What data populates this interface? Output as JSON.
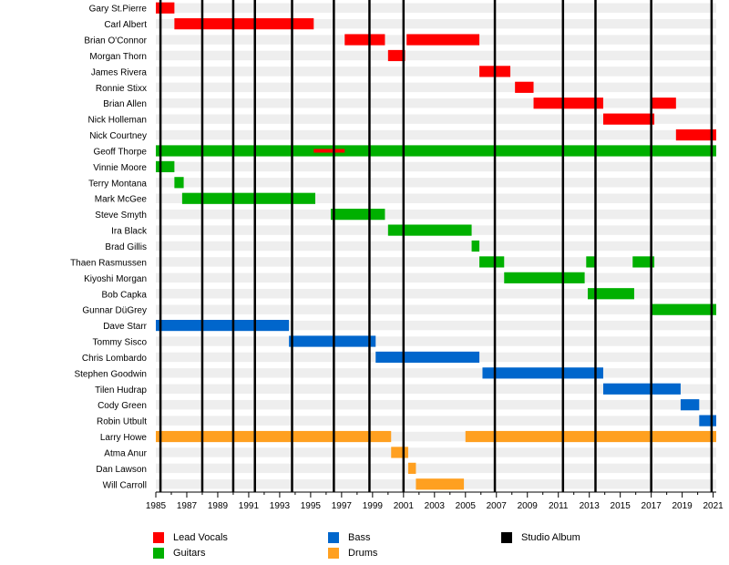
{
  "chart_data": {
    "type": "timeline",
    "x_range": [
      1985,
      2021.2
    ],
    "tick_labels": [
      "1985",
      "1987",
      "1989",
      "1991",
      "1993",
      "1995",
      "1997",
      "1999",
      "2001",
      "2003",
      "2005",
      "2007",
      "2009",
      "2011",
      "2013",
      "2015",
      "2017",
      "2019",
      "2021"
    ],
    "colors": {
      "lead_vocals": "#ff0000",
      "guitars": "#00b000",
      "bass": "#0066cc",
      "drums": "#ffa020",
      "studio_album": "#000000",
      "row_band": "#eeeeee"
    },
    "legend": [
      {
        "key": "lead_vocals",
        "label": "Lead Vocals"
      },
      {
        "key": "guitars",
        "label": "Guitars"
      },
      {
        "key": "bass",
        "label": "Bass"
      },
      {
        "key": "drums",
        "label": "Drums"
      },
      {
        "key": "studio_album",
        "label": "Studio Album"
      }
    ],
    "studio_albums": [
      1985.3,
      1988.0,
      1990.0,
      1991.4,
      1993.8,
      1996.5,
      1998.8,
      2001.0,
      2006.9,
      2011.3,
      2013.4,
      2017.0,
      2020.9
    ],
    "members": [
      {
        "name": "Gary St.Pierre",
        "bars": [
          {
            "role": "lead_vocals",
            "start": 1985.0,
            "end": 1986.2
          }
        ]
      },
      {
        "name": "Carl Albert",
        "bars": [
          {
            "role": "lead_vocals",
            "start": 1986.2,
            "end": 1995.2
          }
        ]
      },
      {
        "name": "Brian O'Connor",
        "bars": [
          {
            "role": "lead_vocals",
            "start": 1997.2,
            "end": 1999.8
          },
          {
            "role": "lead_vocals",
            "start": 2001.2,
            "end": 2005.9
          }
        ]
      },
      {
        "name": "Morgan Thorn",
        "bars": [
          {
            "role": "lead_vocals",
            "start": 2000.0,
            "end": 2001.1
          }
        ]
      },
      {
        "name": "James Rivera",
        "bars": [
          {
            "role": "lead_vocals",
            "start": 2005.9,
            "end": 2007.9
          }
        ]
      },
      {
        "name": "Ronnie Stixx",
        "bars": [
          {
            "role": "lead_vocals",
            "start": 2008.2,
            "end": 2009.4
          }
        ]
      },
      {
        "name": "Brian Allen",
        "bars": [
          {
            "role": "lead_vocals",
            "start": 2009.4,
            "end": 2013.9
          },
          {
            "role": "lead_vocals",
            "start": 2017.0,
            "end": 2018.6
          }
        ]
      },
      {
        "name": "Nick Holleman",
        "bars": [
          {
            "role": "lead_vocals",
            "start": 2013.9,
            "end": 2017.2
          }
        ]
      },
      {
        "name": "Nick Courtney",
        "bars": [
          {
            "role": "lead_vocals",
            "start": 2018.6,
            "end": 2021.2
          }
        ]
      },
      {
        "name": "Geoff Thorpe",
        "bars": [
          {
            "role": "guitars",
            "start": 1985.0,
            "end": 2021.2
          },
          {
            "role": "lead_vocals",
            "start": 1995.2,
            "end": 1997.2,
            "thin": true
          }
        ]
      },
      {
        "name": "Vinnie Moore",
        "bars": [
          {
            "role": "guitars",
            "start": 1985.0,
            "end": 1986.2
          }
        ]
      },
      {
        "name": "Terry Montana",
        "bars": [
          {
            "role": "guitars",
            "start": 1986.2,
            "end": 1986.8
          }
        ]
      },
      {
        "name": "Mark McGee",
        "bars": [
          {
            "role": "guitars",
            "start": 1986.7,
            "end": 1995.3
          }
        ]
      },
      {
        "name": "Steve Smyth",
        "bars": [
          {
            "role": "guitars",
            "start": 1996.3,
            "end": 1999.8
          }
        ]
      },
      {
        "name": "Ira Black",
        "bars": [
          {
            "role": "guitars",
            "start": 2000.0,
            "end": 2005.4
          }
        ]
      },
      {
        "name": "Brad Gillis",
        "bars": [
          {
            "role": "guitars",
            "start": 2005.4,
            "end": 2005.9
          }
        ]
      },
      {
        "name": "Thaen Rasmussen",
        "bars": [
          {
            "role": "guitars",
            "start": 2005.9,
            "end": 2007.5
          },
          {
            "role": "guitars",
            "start": 2012.8,
            "end": 2013.4
          },
          {
            "role": "guitars",
            "start": 2015.8,
            "end": 2017.2
          }
        ]
      },
      {
        "name": "Kiyoshi Morgan",
        "bars": [
          {
            "role": "guitars",
            "start": 2007.5,
            "end": 2012.7
          }
        ]
      },
      {
        "name": "Bob Capka",
        "bars": [
          {
            "role": "guitars",
            "start": 2012.9,
            "end": 2015.9
          }
        ]
      },
      {
        "name": "Gunnar DüGrey",
        "bars": [
          {
            "role": "guitars",
            "start": 2017.0,
            "end": 2021.2
          }
        ]
      },
      {
        "name": "Dave Starr",
        "bars": [
          {
            "role": "bass",
            "start": 1985.0,
            "end": 1993.6
          }
        ]
      },
      {
        "name": "Tommy Sisco",
        "bars": [
          {
            "role": "bass",
            "start": 1993.6,
            "end": 1999.2
          }
        ]
      },
      {
        "name": "Chris Lombardo",
        "bars": [
          {
            "role": "bass",
            "start": 1999.2,
            "end": 2005.9
          }
        ]
      },
      {
        "name": "Stephen Goodwin",
        "bars": [
          {
            "role": "bass",
            "start": 2006.1,
            "end": 2013.9
          }
        ]
      },
      {
        "name": "Tilen Hudrap",
        "bars": [
          {
            "role": "bass",
            "start": 2013.9,
            "end": 2018.9
          }
        ]
      },
      {
        "name": "Cody Green",
        "bars": [
          {
            "role": "bass",
            "start": 2018.9,
            "end": 2020.1
          }
        ]
      },
      {
        "name": "Robin Utbult",
        "bars": [
          {
            "role": "bass",
            "start": 2020.1,
            "end": 2021.2
          }
        ]
      },
      {
        "name": "Larry Howe",
        "bars": [
          {
            "role": "drums",
            "start": 1985.0,
            "end": 2000.2
          },
          {
            "role": "drums",
            "start": 2005.0,
            "end": 2021.2
          }
        ]
      },
      {
        "name": "Atma Anur",
        "bars": [
          {
            "role": "drums",
            "start": 2000.2,
            "end": 2001.3
          }
        ]
      },
      {
        "name": "Dan Lawson",
        "bars": [
          {
            "role": "drums",
            "start": 2001.3,
            "end": 2001.8
          }
        ]
      },
      {
        "name": "Will Carroll",
        "bars": [
          {
            "role": "drums",
            "start": 2001.8,
            "end": 2004.9
          }
        ]
      }
    ]
  }
}
